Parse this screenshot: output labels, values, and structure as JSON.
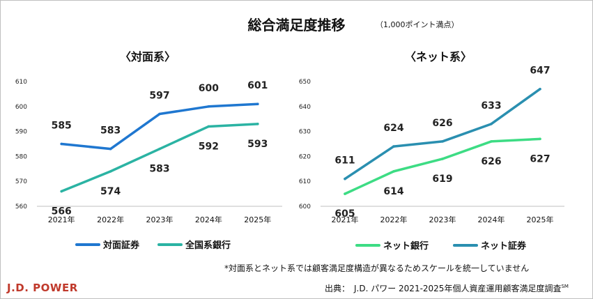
{
  "header": {
    "title": "総合満足度推移",
    "unit_note": "（1,000ポイント満点）"
  },
  "chart_data": [
    {
      "type": "line",
      "title": "〈対面系〉",
      "categories": [
        "2021年",
        "2022年",
        "2023年",
        "2024年",
        "2025年"
      ],
      "ylim": [
        560,
        610
      ],
      "yticks": [
        560,
        570,
        580,
        590,
        600,
        610
      ],
      "xlabel": "",
      "ylabel": "",
      "series": [
        {
          "name": "対面証券",
          "color": "#1f77d0",
          "values": [
            585,
            583,
            597,
            600,
            601
          ],
          "label_pos": "above"
        },
        {
          "name": "全国系銀行",
          "color": "#2bb3a3",
          "values": [
            566,
            574,
            583,
            592,
            593
          ],
          "label_pos": "below"
        }
      ],
      "legend": "bottom"
    },
    {
      "type": "line",
      "title": "〈ネット系〉",
      "categories": [
        "2021年",
        "2022年",
        "2023年",
        "2024年",
        "2025年"
      ],
      "ylim": [
        600,
        650
      ],
      "yticks": [
        600,
        610,
        620,
        630,
        640,
        650
      ],
      "xlabel": "",
      "ylabel": "",
      "series": [
        {
          "name": "ネット銀行",
          "color": "#3ddc84",
          "values": [
            605,
            614,
            619,
            626,
            627
          ],
          "label_pos": "below"
        },
        {
          "name": "ネット証券",
          "color": "#2a8fb0",
          "values": [
            611,
            624,
            626,
            633,
            647
          ],
          "label_pos": "above"
        }
      ],
      "legend": "bottom"
    }
  ],
  "footnote": "*対面系とネット系では顧客満足度構造が異なるためスケールを統一していません",
  "source": "出典：　J.D. パワー 2021-2025年個人資産運用顧客満足度調査",
  "source_mark": "SM",
  "logo": {
    "text": "J.D. POWER",
    "color": "#c0392b"
  }
}
